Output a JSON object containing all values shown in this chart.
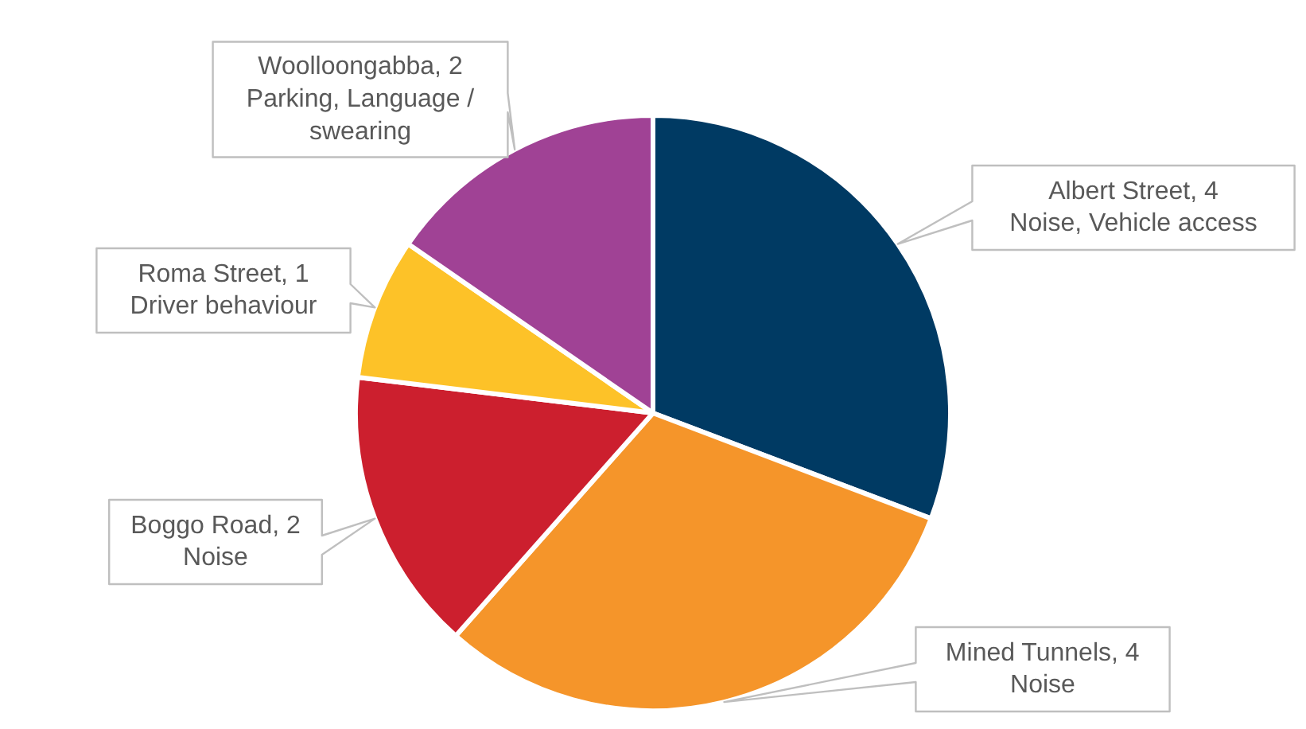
{
  "chart_data": {
    "type": "pie",
    "categories": [
      "Albert Street, 4",
      "Mined Tunnels, 4",
      "Boggo Road, 2",
      "Roma Street, 1",
      "Woolloongabba, 2"
    ],
    "values": [
      4,
      4,
      2,
      1,
      2
    ],
    "colors": [
      "#003a63",
      "#f5952a",
      "#cc1f2e",
      "#fdc228",
      "#a04295"
    ],
    "annotations": [
      "Noise, Vehicle access",
      "Noise",
      "Noise",
      "Driver behaviour",
      "Parking, Language / swearing"
    ]
  }
}
